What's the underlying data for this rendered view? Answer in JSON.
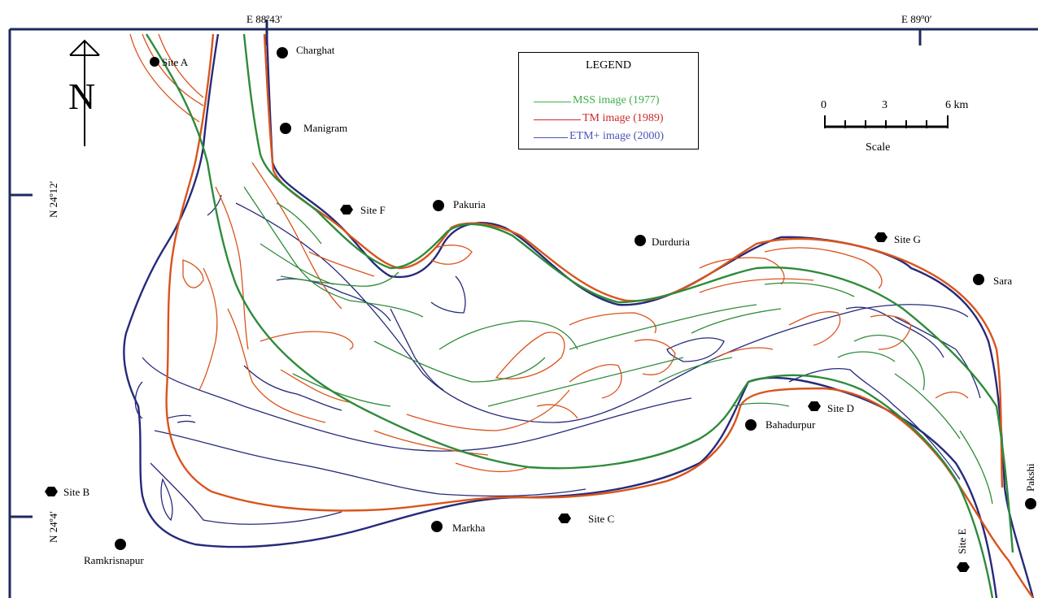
{
  "colors": {
    "mss": "#2e8b3a",
    "tm": "#d9541c",
    "tm_legend": "#cc2b2b",
    "etm": "#262a7a",
    "mss_legend": "#3fae4a",
    "etm_legend": "#4b55b8"
  },
  "coordinates": {
    "top_left": "E 88º43′",
    "top_right": "E 89º0′",
    "left_upper": "N 24º12′",
    "left_lower": "N 24º4′"
  },
  "legend": {
    "title": "LEGEND",
    "items": [
      {
        "label": "MSS image (1977)",
        "color_key": "mss_legend"
      },
      {
        "label": "TM image (1989)",
        "color_key": "tm_legend"
      },
      {
        "label": "ETM+ image (2000)",
        "color_key": "etm_legend"
      }
    ]
  },
  "scale": {
    "ticks": [
      "0",
      "3",
      "6 km"
    ],
    "label": "Scale"
  },
  "north_arrow": "N",
  "places": [
    {
      "name": "Site A",
      "marker": "circle"
    },
    {
      "name": "Charghat",
      "marker": "circle"
    },
    {
      "name": "Manigram",
      "marker": "circle"
    },
    {
      "name": "Site F",
      "marker": "hexagon"
    },
    {
      "name": "Pakuria",
      "marker": "circle"
    },
    {
      "name": "Durduria",
      "marker": "circle"
    },
    {
      "name": "Site G",
      "marker": "hexagon"
    },
    {
      "name": "Sara",
      "marker": "circle"
    },
    {
      "name": "Site D",
      "marker": "hexagon"
    },
    {
      "name": "Bahadurpur",
      "marker": "circle"
    },
    {
      "name": "Site B",
      "marker": "hexagon"
    },
    {
      "name": "Ramkrisnapur",
      "marker": "circle"
    },
    {
      "name": "Markha",
      "marker": "circle"
    },
    {
      "name": "Site C",
      "marker": "hexagon"
    },
    {
      "name": "Site E",
      "marker": "hexagon"
    },
    {
      "name": "Pakshi",
      "marker": "circle"
    }
  ]
}
